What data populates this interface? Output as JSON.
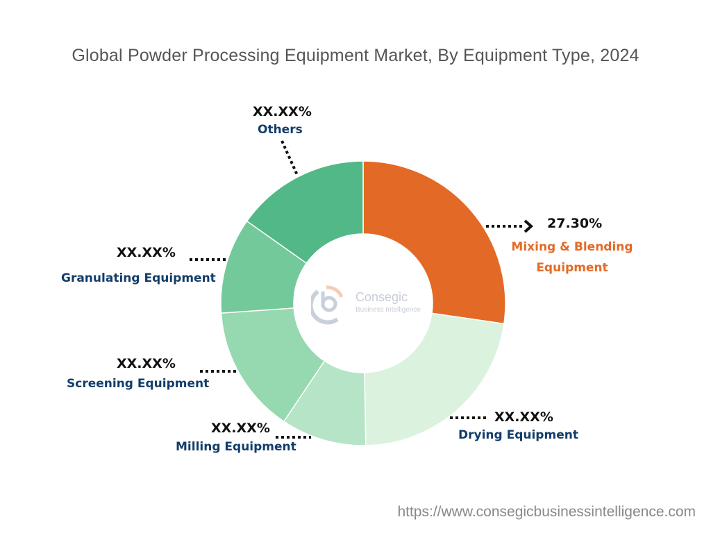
{
  "chart_data": {
    "type": "pie",
    "donut": true,
    "title": "Global Powder Processing Equipment Market, By Equipment Type, 2024",
    "slices": [
      {
        "label": "Mixing & Blending Equipment",
        "value_label": "27.30%",
        "value": 27.3,
        "color": "#E36A26"
      },
      {
        "label": "Drying Equipment",
        "value_label": "XX.XX%",
        "value": 22.4,
        "color": "#DAF2DE"
      },
      {
        "label": "Milling Equipment",
        "value_label": "XX.XX%",
        "value": 9.7,
        "color": "#B5E4C7"
      },
      {
        "label": "Screening Equipment",
        "value_label": "XX.XX%",
        "value": 14.5,
        "color": "#96D8B0"
      },
      {
        "label": "Granulating Equipment",
        "value_label": "XX.XX%",
        "value": 10.9,
        "color": "#74C99A"
      },
      {
        "label": "Others",
        "value_label": "XX.XX%",
        "value": 15.2,
        "color": "#52B887"
      }
    ],
    "highlight_label_color": "#E36A26",
    "label_color": "#123D6A"
  },
  "logo": {
    "name": "Consegic",
    "tagline": "Business Intelligence"
  },
  "source_url": "https://www.consegicbusinessintelligence.com"
}
